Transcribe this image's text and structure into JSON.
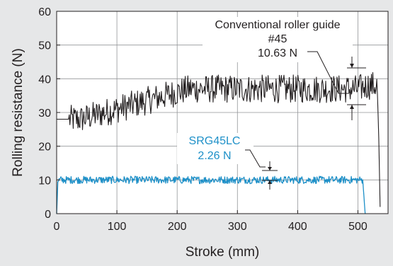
{
  "colors": {
    "background": "#e6e7e8",
    "plot_background": "#ffffff",
    "conventional": "#231f20",
    "srg": "#1e90c8"
  },
  "chart_data": {
    "type": "line",
    "xlabel": "Stroke (mm)",
    "ylabel": "Rolling resistance (N)",
    "xlim": [
      0,
      550
    ],
    "ylim": [
      0,
      60
    ],
    "x_ticks": [
      "0",
      "100",
      "200",
      "300",
      "400",
      "500"
    ],
    "y_ticks": [
      "0",
      "10",
      "20",
      "30",
      "40",
      "50",
      "60"
    ],
    "grid": true,
    "legend": "none",
    "series": [
      {
        "name": "Conventional roller guide #45",
        "annotation": [
          "Conventional roller guide",
          "#45",
          "10.63 N"
        ],
        "color": "#231f20",
        "x": [
          0,
          20,
          40,
          60,
          80,
          100,
          120,
          140,
          160,
          180,
          200,
          220,
          240,
          260,
          280,
          300,
          320,
          340,
          360,
          380,
          400,
          420,
          440,
          460,
          480,
          500,
          515,
          525,
          532,
          535,
          537
        ],
        "y": [
          28,
          28,
          28,
          29,
          30,
          31,
          32,
          33,
          34,
          35,
          36,
          37,
          37,
          37,
          37,
          37,
          37,
          37,
          37,
          37,
          37,
          37,
          37,
          37,
          37,
          37,
          38,
          38,
          38,
          20,
          0
        ],
        "noise_amplitude": 4.2
      },
      {
        "name": "SRG45LC",
        "annotation": [
          "SRG45LC",
          "2.26 N"
        ],
        "color": "#1e90c8",
        "x": [
          0,
          2,
          5,
          50,
          100,
          150,
          200,
          250,
          300,
          350,
          400,
          450,
          500,
          508,
          510,
          512
        ],
        "y": [
          0,
          9.5,
          10,
          10,
          10,
          10,
          10,
          10,
          10,
          10,
          10,
          10,
          10,
          10,
          5,
          0
        ],
        "noise_amplitude": 1.1
      }
    ]
  }
}
